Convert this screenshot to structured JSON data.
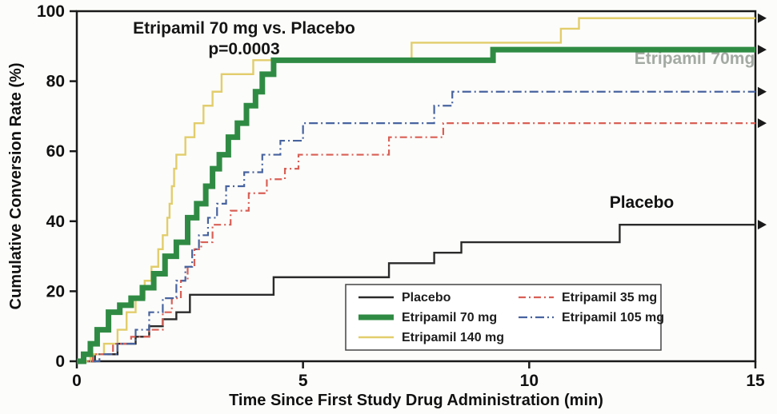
{
  "chart_data": {
    "type": "line",
    "subtype": "kaplan-meier-step",
    "title": "Etripamil 70 mg vs. Placebo",
    "p_value": "p=0.0003",
    "xlabel": "Time Since First Study Drug Administration (min)",
    "ylabel": "Cumulative Conversion Rate (%)",
    "xlim": [
      0,
      15
    ],
    "ylim": [
      0,
      100
    ],
    "x_ticks": [
      0,
      5,
      10,
      15
    ],
    "y_ticks": [
      0,
      20,
      40,
      60,
      80,
      100
    ],
    "grid": false,
    "annotations": {
      "title_line1": "Etripamil 70 mg vs. Placebo",
      "title_line2": "p=0.0003",
      "curve_label_70mg": "Etripamil 70mg",
      "curve_label_placebo": "Placebo"
    },
    "legend": {
      "position": "inside-bottom-center",
      "columns": [
        [
          0,
          1,
          2
        ],
        [
          3,
          4
        ]
      ]
    },
    "draw_order": [
      0,
      2,
      3,
      4,
      1
    ],
    "series": [
      {
        "name": "placebo",
        "label": "Placebo",
        "color": "#2a2a2a",
        "width": 2.4,
        "dash": "",
        "final_value": 39,
        "steps": [
          [
            0,
            0
          ],
          [
            0.4,
            2
          ],
          [
            0.9,
            5
          ],
          [
            1.3,
            7
          ],
          [
            1.6,
            10
          ],
          [
            1.9,
            12
          ],
          [
            2.2,
            14
          ],
          [
            2.5,
            19
          ],
          [
            4.35,
            24
          ],
          [
            6.9,
            28
          ],
          [
            7.9,
            31
          ],
          [
            8.5,
            34
          ],
          [
            12,
            39
          ]
        ]
      },
      {
        "name": "etripamil-70mg",
        "label": "Etripamil 70 mg",
        "color": "#2f8b43",
        "width": 7,
        "dash": "",
        "final_value": 89,
        "steps": [
          [
            0,
            0
          ],
          [
            0.15,
            2
          ],
          [
            0.3,
            5
          ],
          [
            0.45,
            9
          ],
          [
            0.7,
            14
          ],
          [
            0.95,
            16
          ],
          [
            1.2,
            18
          ],
          [
            1.45,
            21
          ],
          [
            1.7,
            25
          ],
          [
            1.95,
            30
          ],
          [
            2.2,
            34
          ],
          [
            2.45,
            41
          ],
          [
            2.65,
            45
          ],
          [
            2.85,
            50
          ],
          [
            3.0,
            55
          ],
          [
            3.15,
            59
          ],
          [
            3.35,
            64
          ],
          [
            3.55,
            68
          ],
          [
            3.75,
            73
          ],
          [
            3.95,
            77
          ],
          [
            4.1,
            82
          ],
          [
            4.35,
            86
          ],
          [
            9.2,
            89
          ]
        ]
      },
      {
        "name": "etripamil-140mg",
        "label": "Etripamil 140 mg",
        "color": "#e2cd6b",
        "width": 2.4,
        "dash": "",
        "final_value": 98,
        "steps": [
          [
            0,
            0
          ],
          [
            0.3,
            2
          ],
          [
            0.6,
            5
          ],
          [
            0.9,
            9
          ],
          [
            1.1,
            14
          ],
          [
            1.3,
            18
          ],
          [
            1.5,
            23
          ],
          [
            1.65,
            27
          ],
          [
            1.8,
            32
          ],
          [
            1.9,
            36
          ],
          [
            2.0,
            41
          ],
          [
            2.05,
            45
          ],
          [
            2.1,
            50
          ],
          [
            2.15,
            55
          ],
          [
            2.2,
            59
          ],
          [
            2.4,
            64
          ],
          [
            2.6,
            68
          ],
          [
            2.8,
            73
          ],
          [
            3.0,
            77
          ],
          [
            3.2,
            82
          ],
          [
            3.9,
            86
          ],
          [
            7.4,
            91
          ],
          [
            10.7,
            95
          ],
          [
            11.1,
            98
          ]
        ]
      },
      {
        "name": "etripamil-35mg",
        "label": "Etripamil 35 mg",
        "color": "#d95f55",
        "width": 2.2,
        "dash": "9 4 2 4",
        "final_value": 68,
        "steps": [
          [
            0,
            0
          ],
          [
            0.35,
            2
          ],
          [
            0.8,
            5
          ],
          [
            1.2,
            7
          ],
          [
            1.6,
            9
          ],
          [
            1.9,
            14
          ],
          [
            2.1,
            18
          ],
          [
            2.3,
            23
          ],
          [
            2.45,
            27
          ],
          [
            2.6,
            32
          ],
          [
            2.75,
            34
          ],
          [
            3.0,
            39
          ],
          [
            3.4,
            43
          ],
          [
            3.8,
            48
          ],
          [
            4.2,
            52
          ],
          [
            4.6,
            55
          ],
          [
            4.9,
            59
          ],
          [
            6.9,
            64
          ],
          [
            8.1,
            68
          ]
        ]
      },
      {
        "name": "etripamil-105mg",
        "label": "Etripamil 105 mg",
        "color": "#47639f",
        "width": 2.2,
        "dash": "11 4 2 4",
        "final_value": 77,
        "steps": [
          [
            0,
            0
          ],
          [
            0.5,
            2
          ],
          [
            0.9,
            5
          ],
          [
            1.3,
            9
          ],
          [
            1.6,
            14
          ],
          [
            1.9,
            18
          ],
          [
            2.2,
            23
          ],
          [
            2.4,
            27
          ],
          [
            2.55,
            32
          ],
          [
            2.7,
            36
          ],
          [
            2.9,
            41
          ],
          [
            3.1,
            45
          ],
          [
            3.3,
            50
          ],
          [
            3.7,
            54
          ],
          [
            4.1,
            59
          ],
          [
            4.5,
            63
          ],
          [
            5.0,
            68
          ],
          [
            7.9,
            73
          ],
          [
            8.3,
            77
          ]
        ]
      }
    ]
  }
}
